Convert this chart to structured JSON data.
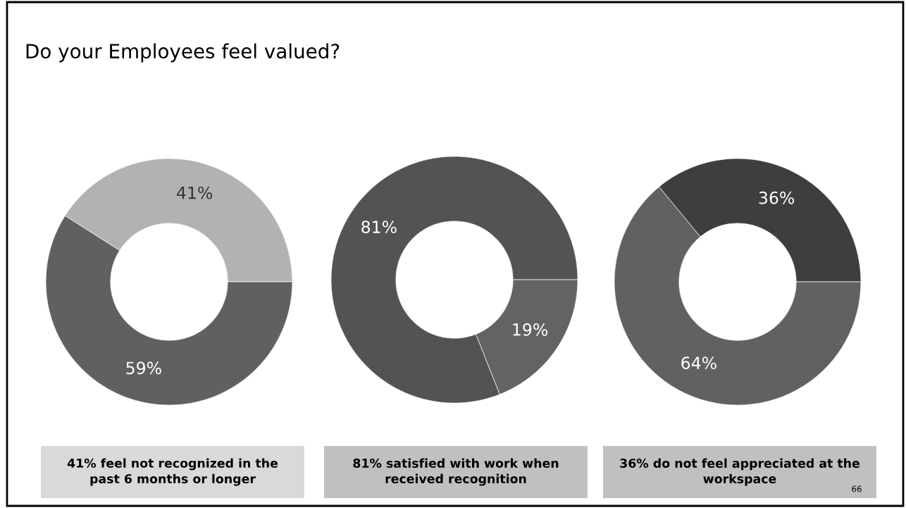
{
  "chart_data": [
    {
      "type": "donut",
      "title": "Do your Employees feel valued?",
      "categories": [
        null,
        null
      ],
      "values": [
        41,
        59
      ],
      "colors": [
        "#b2b2b2",
        "#606060"
      ],
      "value_labels": [
        "41%",
        "59%"
      ],
      "annotations": [
        "41% feel not recognized in the past 6 months or longer"
      ]
    },
    {
      "type": "donut",
      "categories": [
        null,
        null
      ],
      "values": [
        81,
        19
      ],
      "colors": [
        "#535353",
        "#636363"
      ],
      "value_labels": [
        "81%",
        "19%"
      ],
      "annotations": [
        "81% satisfied with work when received recognition"
      ]
    },
    {
      "type": "donut",
      "categories": [
        null,
        null
      ],
      "values": [
        36,
        64
      ],
      "colors": [
        "#3e3e3e",
        "#616161"
      ],
      "value_labels": [
        "36%",
        "64%"
      ],
      "annotations": [
        "36% do not feel appreciated at the workspace",
        "66"
      ]
    }
  ]
}
